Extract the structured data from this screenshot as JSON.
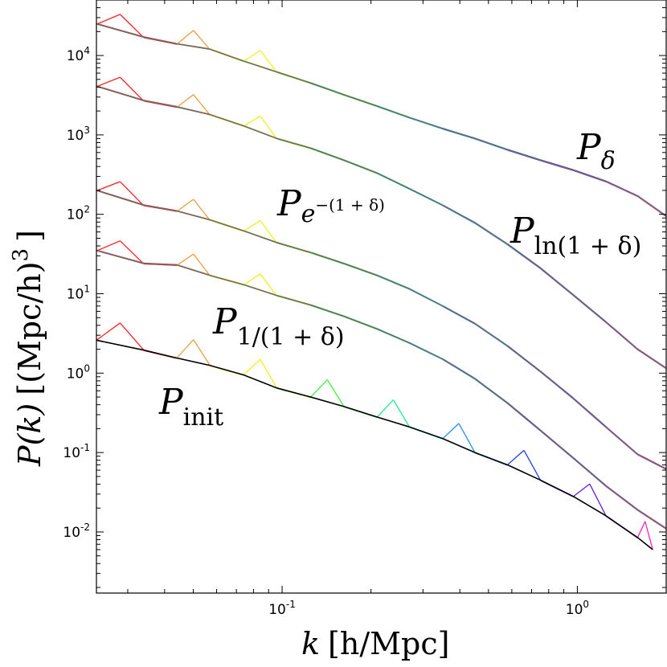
{
  "chart_data": {
    "type": "line",
    "title": "",
    "x_scale": "log",
    "y_scale": "log",
    "xlim": [
      0.0235,
      2.0
    ],
    "ylim": [
      0.0017,
      50000
    ],
    "xlabel": {
      "var": "k",
      "unit": "[h/Mpc]"
    },
    "ylabel": {
      "var": "P(k)",
      "unit": "[(Mpc/h)",
      "exp": "3",
      "close": "]"
    },
    "x_ticks": [
      {
        "value": 0.1,
        "base": "10",
        "exp": "-1"
      },
      {
        "value": 1.0,
        "base": "10",
        "exp": "0"
      }
    ],
    "y_ticks": [
      {
        "value": 10000,
        "base": "10",
        "exp": "4"
      },
      {
        "value": 1000,
        "base": "10",
        "exp": "3"
      },
      {
        "value": 100,
        "base": "10",
        "exp": "2"
      },
      {
        "value": 10,
        "base": "10",
        "exp": "1"
      },
      {
        "value": 1,
        "base": "10",
        "exp": "0"
      },
      {
        "value": 0.1,
        "base": "10",
        "exp": "-1"
      },
      {
        "value": 0.01,
        "base": "10",
        "exp": "-2"
      }
    ],
    "color_scale": [
      "#ff2020",
      "#e8a040",
      "#f0f020",
      "#a0f020",
      "#40f040",
      "#20e890",
      "#30e8e8",
      "#2090f0",
      "#2040e0",
      "#6020e0",
      "#c020e0",
      "#f020c0"
    ],
    "annotations": [
      {
        "name": "p-delta",
        "base": "P",
        "sub": "δ",
        "sup": ""
      },
      {
        "name": "p-ln",
        "base": "P",
        "sub": "ln(1 + δ)",
        "sup": ""
      },
      {
        "name": "p-exp",
        "base": "P",
        "sub": "e",
        "sup": "−(1 + δ)"
      },
      {
        "name": "p-inv",
        "base": "P",
        "sub": "1/(1 + δ)",
        "sup": ""
      },
      {
        "name": "p-init",
        "base": "P",
        "sub": "init",
        "sup": ""
      }
    ],
    "series": [
      {
        "name": "P_init",
        "color": "#000000",
        "k": [
          0.0235,
          0.034,
          0.044,
          0.057,
          0.074,
          0.096,
          0.125,
          0.162,
          0.21,
          0.27,
          0.35,
          0.45,
          0.58,
          0.75,
          0.97,
          1.25,
          1.6,
          1.8
        ],
        "P": [
          2.6,
          1.95,
          1.55,
          1.25,
          0.95,
          0.65,
          0.5,
          0.38,
          0.28,
          0.21,
          0.15,
          0.1,
          0.07,
          0.045,
          0.028,
          0.016,
          0.0085,
          0.006
        ]
      },
      {
        "name": "P_1/(1+δ)",
        "color": "#6a6a6a",
        "k": [
          0.0235,
          0.034,
          0.044,
          0.057,
          0.074,
          0.096,
          0.125,
          0.162,
          0.21,
          0.27,
          0.35,
          0.45,
          0.58,
          0.75,
          0.97,
          1.25,
          1.6,
          2.0
        ],
        "P": [
          35,
          24,
          23,
          17,
          13,
          9.5,
          7.2,
          5.2,
          3.6,
          2.4,
          1.5,
          0.85,
          0.42,
          0.19,
          0.085,
          0.038,
          0.019,
          0.011
        ]
      },
      {
        "name": "P_e^-(1+δ)",
        "color": "#6a6a6a",
        "k": [
          0.0235,
          0.034,
          0.044,
          0.057,
          0.074,
          0.096,
          0.125,
          0.162,
          0.21,
          0.27,
          0.35,
          0.45,
          0.58,
          0.75,
          0.97,
          1.25,
          1.6,
          2.0
        ],
        "P": [
          200,
          130,
          110,
          85,
          62,
          44,
          33,
          24,
          17,
          11.5,
          7,
          4.2,
          2.2,
          1.05,
          0.48,
          0.21,
          0.095,
          0.062
        ]
      },
      {
        "name": "P_ln(1+δ)",
        "color": "#6a6a6a",
        "k": [
          0.0235,
          0.034,
          0.044,
          0.057,
          0.074,
          0.096,
          0.125,
          0.162,
          0.21,
          0.27,
          0.35,
          0.45,
          0.58,
          0.75,
          0.97,
          1.25,
          1.6,
          2.0
        ],
        "P": [
          4100,
          2700,
          2250,
          1800,
          1300,
          900,
          680,
          480,
          330,
          210,
          130,
          78,
          42,
          21,
          9.6,
          4.4,
          2.0,
          1.15
        ]
      },
      {
        "name": "P_δ",
        "color": "#6a6a6a",
        "k": [
          0.0235,
          0.034,
          0.044,
          0.057,
          0.074,
          0.096,
          0.125,
          0.162,
          0.21,
          0.27,
          0.35,
          0.45,
          0.58,
          0.75,
          0.97,
          1.25,
          1.6,
          2.0
        ],
        "P": [
          25000,
          17000,
          14000,
          12000,
          8500,
          6200,
          4500,
          3200,
          2300,
          1650,
          1200,
          900,
          650,
          480,
          360,
          260,
          170,
          95
        ]
      }
    ]
  }
}
